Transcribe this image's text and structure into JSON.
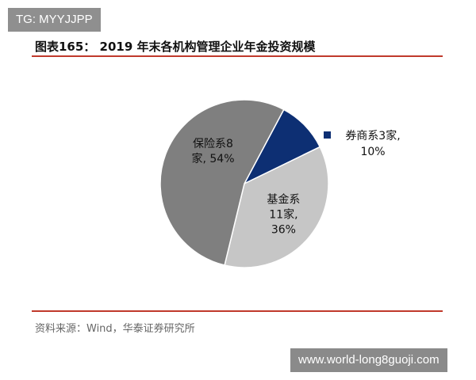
{
  "watermark_top": "TG: MYYJJPP",
  "figure": {
    "title": "图表165： 2019 年末各机构管理企业年金投资规模",
    "source": "资料来源：Wind，华泰证券研究所"
  },
  "watermark_bottom": "www.world-long8guoji.com",
  "chart_data": {
    "type": "pie",
    "slices": [
      {
        "label_lines": [
          "券商系3家,",
          "10%"
        ],
        "value": 10,
        "color": "#0d2f73"
      },
      {
        "label_lines": [
          "基金系",
          "11家,",
          "36%"
        ],
        "value": 36,
        "color": "#c6c6c6"
      },
      {
        "label_lines": [
          "保险系8",
          "家, 54%"
        ],
        "value": 54,
        "color": "#7f7f7f"
      }
    ],
    "legend": {
      "position": "right",
      "entries": [
        "券商系3家,",
        "10%"
      ]
    }
  }
}
